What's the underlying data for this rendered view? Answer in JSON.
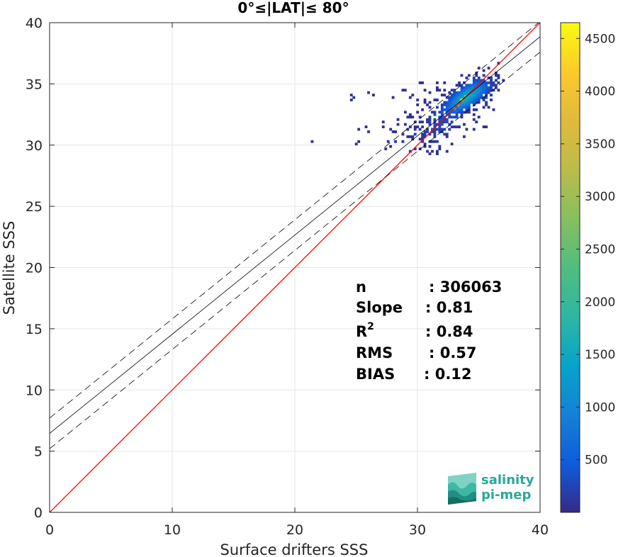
{
  "chart_data": {
    "type": "heatmap",
    "title": "0°≤|LAT|≤ 80°",
    "xlabel": "Surface drifters SSS",
    "ylabel": "Satellite SSS",
    "xlim": [
      0,
      40
    ],
    "ylim": [
      0,
      40
    ],
    "xticks": [
      0,
      10,
      20,
      30,
      40
    ],
    "yticks": [
      0,
      5,
      10,
      15,
      20,
      25,
      30,
      35,
      40
    ],
    "grid": true,
    "colormap": "parula",
    "colorbar": {
      "min": 0,
      "max": 4650,
      "ticks": [
        500,
        1000,
        1500,
        2000,
        2500,
        3000,
        3500,
        4000,
        4500
      ]
    },
    "colors": {
      "identity_line": "#ff0000",
      "fit_line": "#000000"
    },
    "lines": [
      {
        "kind": "identity",
        "x": [
          0,
          40
        ],
        "y": [
          0,
          40
        ],
        "style": "solid"
      },
      {
        "kind": "regression",
        "x": [
          0,
          40
        ],
        "y": [
          6.45,
          38.85
        ],
        "style": "solid"
      },
      {
        "kind": "upper-bound",
        "x": [
          0,
          40
        ],
        "y": [
          7.7,
          40.1
        ],
        "style": "dashed"
      },
      {
        "kind": "lower-bound",
        "x": [
          0,
          40
        ],
        "y": [
          5.2,
          37.6
        ],
        "style": "dashed"
      }
    ],
    "stats": [
      {
        "label": "n",
        "value": ": 306063"
      },
      {
        "label": "Slope",
        "value": ": 0.81"
      },
      {
        "label": "R",
        "superscript": "2",
        "value": ": 0.84"
      },
      {
        "label": "RMS",
        "value": ": 0.57"
      },
      {
        "label": "BIAS",
        "value": ": 0.12"
      }
    ],
    "density_clusters": [
      {
        "x": 34.6,
        "y": 34.4,
        "sx": 1.15,
        "sy": 0.85,
        "rho": 0.55,
        "weight": 1.0
      },
      {
        "x": 33.3,
        "y": 33.4,
        "sx": 0.9,
        "sy": 0.7,
        "rho": 0.5,
        "weight": 0.6
      },
      {
        "x": 32.0,
        "y": 31.9,
        "sx": 1.1,
        "sy": 0.9,
        "rho": 0.3,
        "weight": 0.35
      },
      {
        "x": 30.5,
        "y": 31.2,
        "sx": 1.4,
        "sy": 1.0,
        "rho": 0.1,
        "weight": 0.2
      },
      {
        "x": 27.0,
        "y": 30.8,
        "sx": 2.4,
        "sy": 0.8,
        "rho": 0.1,
        "weight": 0.05
      },
      {
        "x": 24.0,
        "y": 30.4,
        "sx": 2.6,
        "sy": 0.35,
        "rho": 0.0,
        "weight": 0.03
      },
      {
        "x": 31.5,
        "y": 34.0,
        "sx": 2.2,
        "sy": 0.9,
        "rho": 0.0,
        "weight": 0.08
      },
      {
        "x": 26.0,
        "y": 33.8,
        "sx": 2.6,
        "sy": 0.5,
        "rho": 0.0,
        "weight": 0.03
      },
      {
        "x": 34.5,
        "y": 32.0,
        "sx": 1.0,
        "sy": 0.8,
        "rho": 0.2,
        "weight": 0.08
      },
      {
        "x": 30.6,
        "y": 28.2,
        "sx": 0.7,
        "sy": 0.4,
        "rho": 0.0,
        "weight": 0.02
      }
    ],
    "peak_cells": [
      {
        "x": 33.5,
        "y": 33.6,
        "count": 4650
      },
      {
        "x": 33.2,
        "y": 33.2,
        "count": 3200
      },
      {
        "x": 33.8,
        "y": 33.9,
        "count": 2600
      },
      {
        "x": 32.9,
        "y": 32.9,
        "count": 2000
      }
    ]
  },
  "logo": {
    "line1": "salinity",
    "line2": "pi-mep"
  }
}
